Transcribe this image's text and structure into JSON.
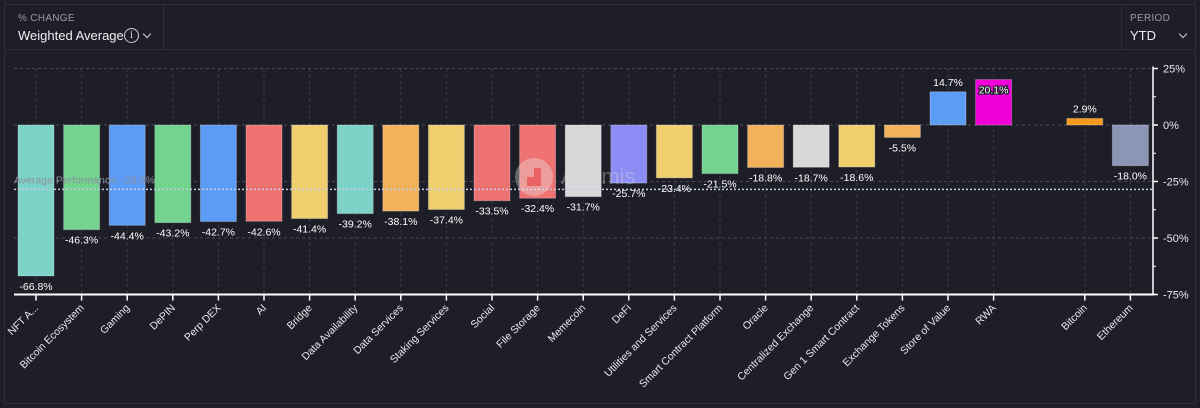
{
  "header": {
    "metric_caption": "% CHANGE",
    "metric_value": "Weighted Average",
    "info_icon": "info-icon",
    "period_caption": "PERIOD",
    "period_value": "YTD"
  },
  "watermark": "Artemis",
  "chart_data": {
    "type": "bar",
    "categories": [
      "NFT A...",
      "Bitcoin Ecosystem",
      "Gaming",
      "DePIN",
      "Perp DEX",
      "AI",
      "Bridge",
      "Data Availability",
      "Data Services",
      "Staking Services",
      "Social",
      "File Storage",
      "Memecoin",
      "DeFi",
      "Utilities and Services",
      "Smart Contract Platform",
      "Oracle",
      "Centralized Exchange",
      "Gen 1 Smart Contract",
      "Exchange Tokens",
      "Store of Value",
      "RWA",
      "Bitcoin",
      "Ethereum"
    ],
    "values": [
      -66.8,
      -46.3,
      -44.4,
      -43.2,
      -42.7,
      -42.6,
      -41.4,
      -39.2,
      -38.1,
      -37.4,
      -33.5,
      -32.4,
      -31.7,
      -25.7,
      -23.4,
      -21.5,
      -18.8,
      -18.7,
      -18.6,
      -5.5,
      14.7,
      20.1,
      2.9,
      -18.0
    ],
    "data_labels": [
      "-66.8%",
      "-46.3%",
      "-44.4%",
      "-43.2%",
      "-42.7%",
      "-42.6%",
      "-41.4%",
      "-39.2%",
      "-38.1%",
      "-37.4%",
      "-33.5%",
      "-32.4%",
      "-31.7%",
      "-25.7%",
      "-23.4%",
      "-21.5%",
      "-18.8%",
      "-18.7%",
      "-18.6%",
      "-5.5%",
      "14.7%",
      "20.1%",
      "2.9%",
      "-18.0%"
    ],
    "colors": [
      "#7dd3c8",
      "#72d48e",
      "#5b9cf5",
      "#72d48e",
      "#5b9cf5",
      "#ee7272",
      "#efcf6e",
      "#7dd3c8",
      "#f2b25c",
      "#efcf6e",
      "#ee7272",
      "#ee7272",
      "#d8d8d8",
      "#8c8cf5",
      "#efcf6e",
      "#72d48e",
      "#f2b25c",
      "#d8d8d8",
      "#efcf6e",
      "#f2b25c",
      "#5b9cf5",
      "#f000d8",
      "#f59a1a",
      "#8d95b6"
    ],
    "ylim": [
      -75,
      25
    ],
    "yticks": [
      25,
      0,
      -25,
      -50,
      -75
    ],
    "ytick_labels": [
      "25%",
      "0%",
      "-25%",
      "-50%",
      "-75%"
    ],
    "y_axis_position": "right",
    "grid": true,
    "average": {
      "value": -28.5,
      "label": "Average Performance: -28.5%"
    }
  }
}
